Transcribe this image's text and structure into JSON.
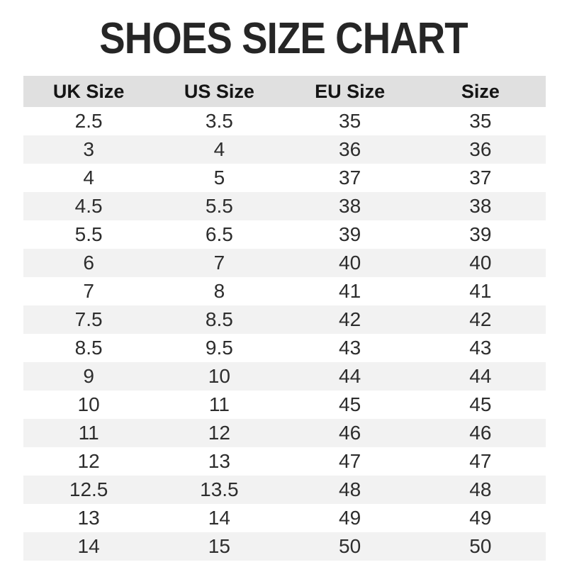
{
  "page": {
    "title": "SHOES SIZE CHART"
  },
  "colors": {
    "background": "#ffffff",
    "title_text": "#262626",
    "header_bg": "#e0e0e0",
    "header_text": "#141414",
    "row_alt_bg": "#f2f2f2",
    "cell_text": "#2d2d2d"
  },
  "chart_data": {
    "type": "table",
    "title": "SHOES SIZE CHART",
    "columns": [
      "UK Size",
      "US Size",
      "EU Size",
      "Size"
    ],
    "rows": [
      [
        "2.5",
        "3.5",
        "35",
        "35"
      ],
      [
        "3",
        "4",
        "36",
        "36"
      ],
      [
        "4",
        "5",
        "37",
        "37"
      ],
      [
        "4.5",
        "5.5",
        "38",
        "38"
      ],
      [
        "5.5",
        "6.5",
        "39",
        "39"
      ],
      [
        "6",
        "7",
        "40",
        "40"
      ],
      [
        "7",
        "8",
        "41",
        "41"
      ],
      [
        "7.5",
        "8.5",
        "42",
        "42"
      ],
      [
        "8.5",
        "9.5",
        "43",
        "43"
      ],
      [
        "9",
        "10",
        "44",
        "44"
      ],
      [
        "10",
        "11",
        "45",
        "45"
      ],
      [
        "11",
        "12",
        "46",
        "46"
      ],
      [
        "12",
        "13",
        "47",
        "47"
      ],
      [
        "12.5",
        "13.5",
        "48",
        "48"
      ],
      [
        "13",
        "14",
        "49",
        "49"
      ],
      [
        "14",
        "15",
        "50",
        "50"
      ]
    ],
    "layout": {
      "header_row_shaded": true,
      "alternating_rows": true,
      "column_alignment": "center",
      "gridlines": false
    }
  }
}
